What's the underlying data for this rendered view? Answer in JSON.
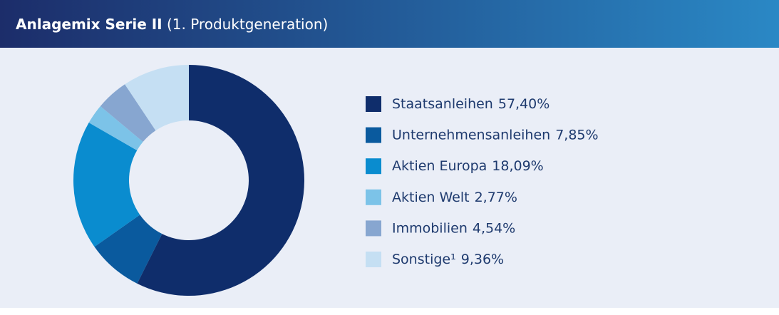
{
  "chart_data": {
    "type": "donut",
    "title": "Anlagemix Serie II",
    "subtitle": "(1. Produktgeneration)",
    "categories": [
      "Staatsanleihen",
      "Unternehmensanleihen",
      "Aktien Europa",
      "Aktien Welt",
      "Immobilien",
      "Sonstige¹"
    ],
    "values": [
      57.4,
      7.85,
      18.09,
      2.77,
      4.54,
      9.36
    ],
    "value_labels": [
      "57,40%",
      "7,85%",
      "18,09%",
      "2,77%",
      "4,54%",
      "9,36%"
    ],
    "colors": [
      "#0f2d6b",
      "#0a5a9e",
      "#0a8ccf",
      "#7cc3e8",
      "#87a6d0",
      "#c5dff3"
    ]
  }
}
